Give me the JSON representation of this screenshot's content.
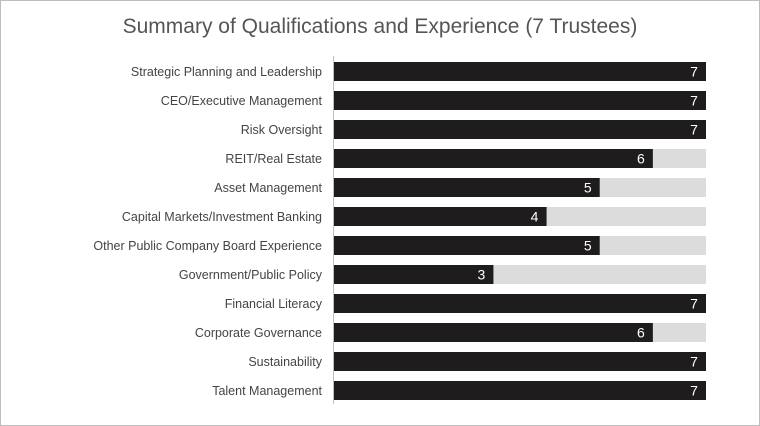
{
  "chart_data": {
    "type": "bar",
    "orientation": "horizontal",
    "title": "Summary of Qualifications and Experience (7 Trustees)",
    "categories": [
      "Strategic Planning and Leadership",
      "CEO/Executive Management",
      "Risk Oversight",
      "REIT/Real Estate",
      "Asset Management",
      "Capital Markets/Investment Banking",
      "Other Public Company Board Experience",
      "Government/Public Policy",
      "Financial Literacy",
      "Corporate Governance",
      "Sustainability",
      "Talent Management"
    ],
    "values": [
      7,
      7,
      7,
      6,
      5,
      4,
      5,
      3,
      7,
      6,
      7,
      7
    ],
    "max": 7,
    "xlim": [
      0,
      7
    ],
    "grid": false,
    "legend": "none",
    "colors": {
      "bar": "#1e1c1d",
      "track": "#dcdcdc",
      "label": "#ffffff",
      "axis": "#bfbfbf"
    }
  }
}
